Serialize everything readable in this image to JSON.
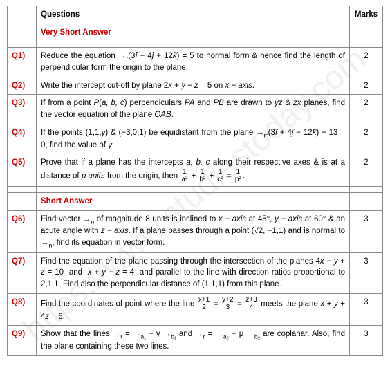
{
  "watermark": "https://www.studiestoday.com",
  "headers": {
    "questions": "Questions",
    "marks": "Marks"
  },
  "sections": {
    "vsa": "Very Short Answer",
    "sa": "Short Answer"
  },
  "rows": [
    {
      "num": "Q1)",
      "html": "Reduce the equation <span style='font-family:serif'>→.</span>(3<i>î</i> − 4<i>ĵ</i> + 12<i>k̂</i>) = 5 to normal form &amp; hence find the length of perpendicular form the origin to the plane.",
      "marks": "2"
    },
    {
      "num": "Q2)",
      "html": "Write the intercept cut-off by plane 2<i>x</i> + <i>y</i> − <i>z</i> = 5 on <i>x − axis</i>.",
      "marks": "2"
    },
    {
      "num": "Q3)",
      "html": "If from a point <i>P</i>(<i>a, b, c</i>) perpendiculars <i>PA</i> and <i>PB</i> are drawn to <i>yz</i> &amp; <i>zx</i> planes, find the vector equation of the plane <i>OAB</i>.",
      "marks": "2"
    },
    {
      "num": "Q4)",
      "html": "If the points (1,1,<i>γ</i>) &amp; (−3,0,1) be equidistant from the plane <span style='font-family:serif'>→</span><sub>r</sub>.(3<i>î</i> + 4<i>ĵ</i> − 12<i>k̂</i>) + 13 = 0, find the value of <i>γ</i>.",
      "marks": "2"
    },
    {
      "num": "Q5)",
      "html": "Prove that if a plane has the intercepts <i>a, b, c</i> along their respective axes &amp; is at a distance of <i>p units</i> from the origin, then <span class='frac'><span class='n'>1</span><span class='d'>a²</span></span> + <span class='frac'><span class='n'>1</span><span class='d'>b²</span></span> + <span class='frac'><span class='n'>1</span><span class='d'>c²</span></span> = <span class='frac'><span class='n'>1</span><span class='d'>p²</span></span>.",
      "marks": "2"
    },
    {
      "num": "Q6)",
      "html": "Find vector <span style='font-family:serif'>→</span><sub>n</sub> of magnitude 8 units is inclined to <i>x − axis</i> at 45°, <i>y − axis</i> at 60° &amp; an acute angle with <i>z − axis</i>. If a plane passes through a point (√2, −1,1) and is normal to <span style='font-family:serif'>→</span><sub>n</sub>, find its equation in vector form.",
      "marks": "3"
    },
    {
      "num": "Q7)",
      "html": "Find the equation of the plane passing through the intersection of the planes 4<i>x</i> − <i>y</i> + <i>z</i> = 10 &nbsp;and&nbsp; <i>x</i> + <i>y</i> − <i>z</i> = 4 &nbsp;and parallel to the line with direction ratios proportional to 2,1,1. Find also the perpendicular distance of (1,1,1) from this plane.",
      "marks": "3"
    },
    {
      "num": "Q8)",
      "html": "Find the coordinates of point where the line <span class='frac'><span class='n'>x+1</span><span class='d'>2</span></span> = <span class='frac'><span class='n'>y+2</span><span class='d'>3</span></span> = <span class='frac'><span class='n'>z+3</span><span class='d'>4</span></span> meets the plane <i>x</i> + <i>y</i> + 4<i>z</i> = 6.",
      "marks": "3"
    },
    {
      "num": "Q9)",
      "html": "Show that the lines <span style='font-family:serif'>→</span><sub>r</sub> = <span style='font-family:serif'>→</span><sub>a₁</sub> + γ <span style='font-family:serif'>→</span><sub>b₁</sub> and <span style='font-family:serif'>→</span><sub>r</sub> = <span style='font-family:serif'>→</span><sub>a₂</sub> + μ <span style='font-family:serif'>→</span><sub>b₂</sub> are coplanar. Also, find the plane containing these two lines.",
      "marks": "3"
    }
  ]
}
